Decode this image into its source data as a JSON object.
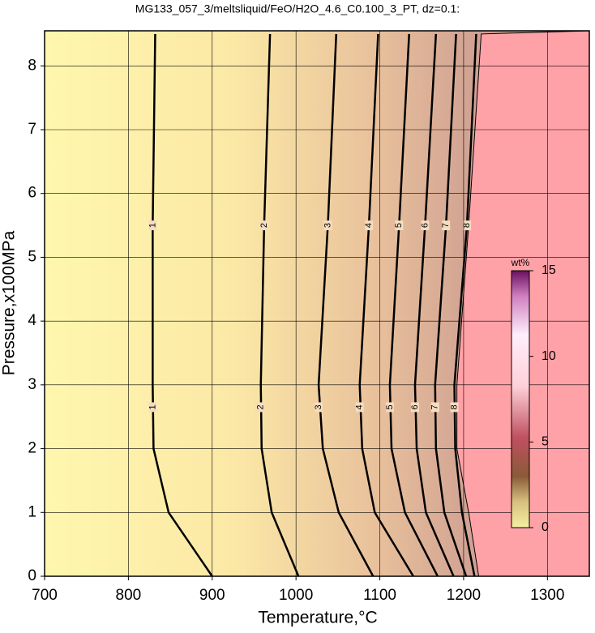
{
  "chart_data": {
    "type": "contour",
    "title": "MG133_057_3/meltsliquid/FeO/H2O_4.6_C0.100_3_PT, dz=0.1:",
    "x_label": "Temperature,°C",
    "y_label": "Pressure,x100MPa",
    "xlim": [
      700,
      1350
    ],
    "ylim": [
      0,
      8.55
    ],
    "xticks": [
      700,
      800,
      900,
      1000,
      1100,
      1200,
      1300
    ],
    "yticks": [
      0,
      1,
      2,
      3,
      4,
      5,
      6,
      7,
      8
    ],
    "grid": true,
    "pressure": [
      0,
      1,
      2,
      3,
      5.5,
      8.5
    ],
    "contours": [
      {
        "label": "1",
        "temperature": [
          900,
          848,
          830,
          829,
          829,
          832
        ]
      },
      {
        "label": "2",
        "temperature": [
          1003,
          971,
          959,
          958,
          962,
          969
        ]
      },
      {
        "label": "3",
        "temperature": [
          1092,
          1051,
          1032,
          1027,
          1038,
          1048
        ]
      },
      {
        "label": "4",
        "temperature": [
          1140,
          1094,
          1079,
          1076,
          1087,
          1098
        ]
      },
      {
        "label": "5",
        "temperature": [
          1169,
          1130,
          1114,
          1112,
          1123,
          1135
        ]
      },
      {
        "label": "6",
        "temperature": [
          1188,
          1155,
          1144,
          1142,
          1154,
          1167
        ]
      },
      {
        "label": "7",
        "temperature": [
          1203,
          1177,
          1167,
          1166,
          1179,
          1191
        ]
      },
      {
        "label": "8",
        "temperature": [
          1213,
          1198,
          1190,
          1189,
          1204,
          1215
        ]
      }
    ],
    "boundary_temperature": [
      1218,
      1206,
      1192,
      1192,
      1206,
      1221
    ],
    "region_color": "#ffa2a8",
    "colorbar": {
      "label": "wt%",
      "lim": [
        0,
        15
      ],
      "ticks": [
        0,
        5,
        10,
        15
      ]
    }
  }
}
